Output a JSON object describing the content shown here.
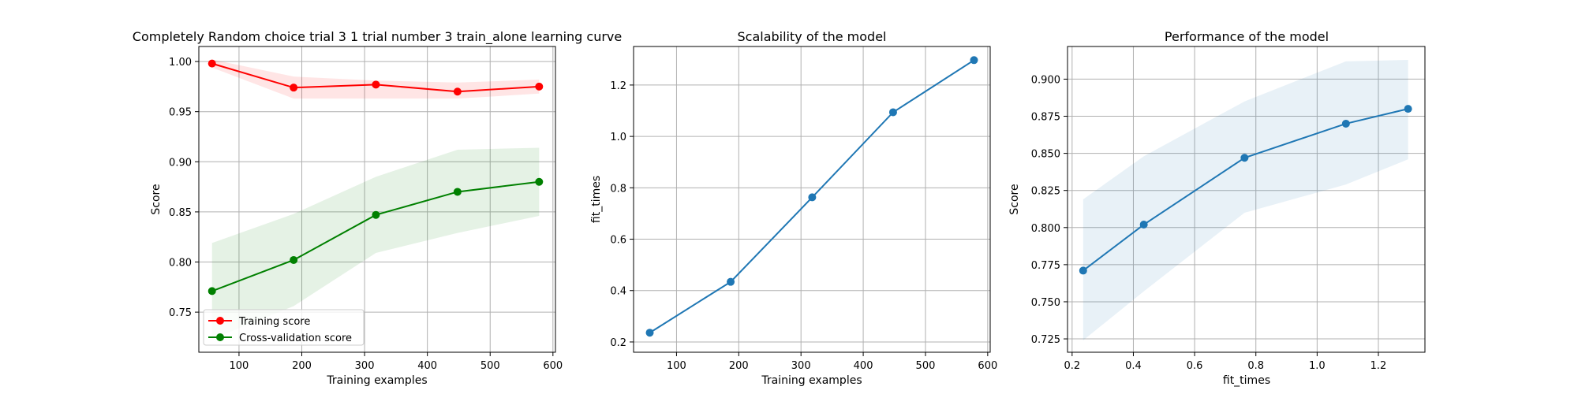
{
  "chart_data": [
    {
      "type": "line",
      "title": "Completely Random choice trial 3 1 trial number 3 train_alone learning curve",
      "xlabel": "Training examples",
      "ylabel": "Score",
      "xlim": [
        36,
        604
      ],
      "ylim": [
        0.71,
        1.015
      ],
      "xticks": [
        100,
        200,
        300,
        400,
        500,
        600
      ],
      "yticks": [
        0.75,
        0.8,
        0.85,
        0.9,
        0.95,
        1.0
      ],
      "grid": true,
      "legend_position": "lower-left",
      "series": [
        {
          "name": "Training score",
          "color": "#ff0000",
          "x": [
            57,
            187,
            318,
            448,
            578
          ],
          "y": [
            0.998,
            0.974,
            0.977,
            0.97,
            0.975
          ],
          "band_lower": [
            0.994,
            0.963,
            0.963,
            0.963,
            0.968
          ],
          "band_upper": [
            1.002,
            0.985,
            0.981,
            0.979,
            0.982
          ]
        },
        {
          "name": "Cross-validation score",
          "color": "#008000",
          "x": [
            57,
            187,
            318,
            448,
            578
          ],
          "y": [
            0.771,
            0.802,
            0.847,
            0.87,
            0.88
          ],
          "band_lower": [
            0.723,
            0.756,
            0.809,
            0.829,
            0.846
          ],
          "band_upper": [
            0.819,
            0.848,
            0.885,
            0.912,
            0.914
          ]
        }
      ]
    },
    {
      "type": "line",
      "title": "Scalability of the model",
      "xlabel": "Training examples",
      "ylabel": "fit_times",
      "xlim": [
        31,
        604
      ],
      "ylim": [
        0.16,
        1.35
      ],
      "xticks": [
        100,
        200,
        300,
        400,
        500,
        600
      ],
      "yticks": [
        0.2,
        0.4,
        0.6,
        0.8,
        1.0,
        1.2
      ],
      "grid": true,
      "series": [
        {
          "color": "#1f77b4",
          "x": [
            57,
            187,
            318,
            448,
            578
          ],
          "y": [
            0.236,
            0.434,
            0.763,
            1.094,
            1.297
          ],
          "band_lower": [
            0.233,
            0.431,
            0.76,
            1.09,
            1.293
          ],
          "band_upper": [
            0.239,
            0.437,
            0.766,
            1.098,
            1.301
          ]
        }
      ]
    },
    {
      "type": "line",
      "title": "Performance of the model",
      "xlabel": "fit_times",
      "ylabel": "Score",
      "xlim": [
        0.185,
        1.352
      ],
      "ylim": [
        0.716,
        0.922
      ],
      "xticks": [
        0.2,
        0.4,
        0.6,
        0.8,
        1.0,
        1.2
      ],
      "yticks": [
        0.725,
        0.75,
        0.775,
        0.8,
        0.825,
        0.85,
        0.875,
        0.9
      ],
      "grid": true,
      "series": [
        {
          "color": "#1f77b4",
          "x": [
            0.236,
            0.434,
            0.763,
            1.094,
            1.297
          ],
          "y": [
            0.771,
            0.802,
            0.847,
            0.87,
            0.88
          ],
          "band_lower": [
            0.724,
            0.757,
            0.81,
            0.829,
            0.846
          ],
          "band_upper": [
            0.819,
            0.848,
            0.885,
            0.912,
            0.913
          ]
        }
      ]
    }
  ]
}
